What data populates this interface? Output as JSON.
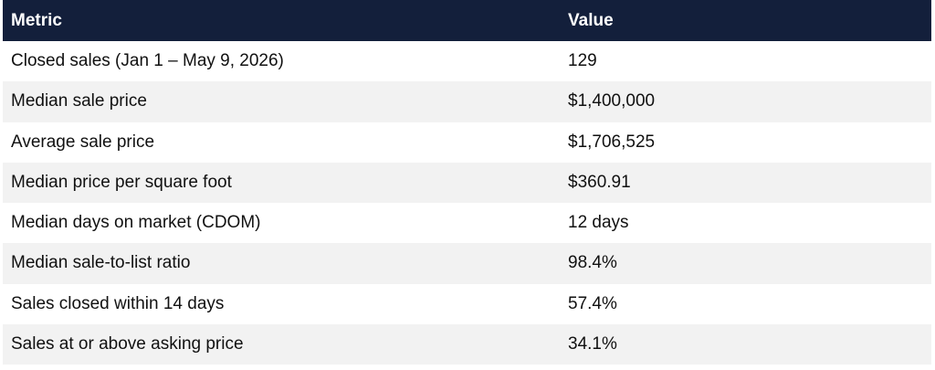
{
  "table": {
    "headers": [
      "Metric",
      "Value"
    ],
    "rows": [
      [
        "Closed sales (Jan 1 – May 9, 2026)",
        "129"
      ],
      [
        "Median sale price",
        "$1,400,000"
      ],
      [
        "Average sale price",
        "$1,706,525"
      ],
      [
        "Median price per square foot",
        "$360.91"
      ],
      [
        "Median days on market (CDOM)",
        "12 days"
      ],
      [
        "Median sale-to-list ratio",
        "98.4%"
      ],
      [
        "Sales closed within 14 days",
        "57.4%"
      ],
      [
        "Sales at or above asking price",
        "34.1%"
      ]
    ]
  },
  "colors": {
    "header_background": "#131f3b",
    "header_text": "#ffffff",
    "row_alt_background": "#f2f2f2"
  }
}
